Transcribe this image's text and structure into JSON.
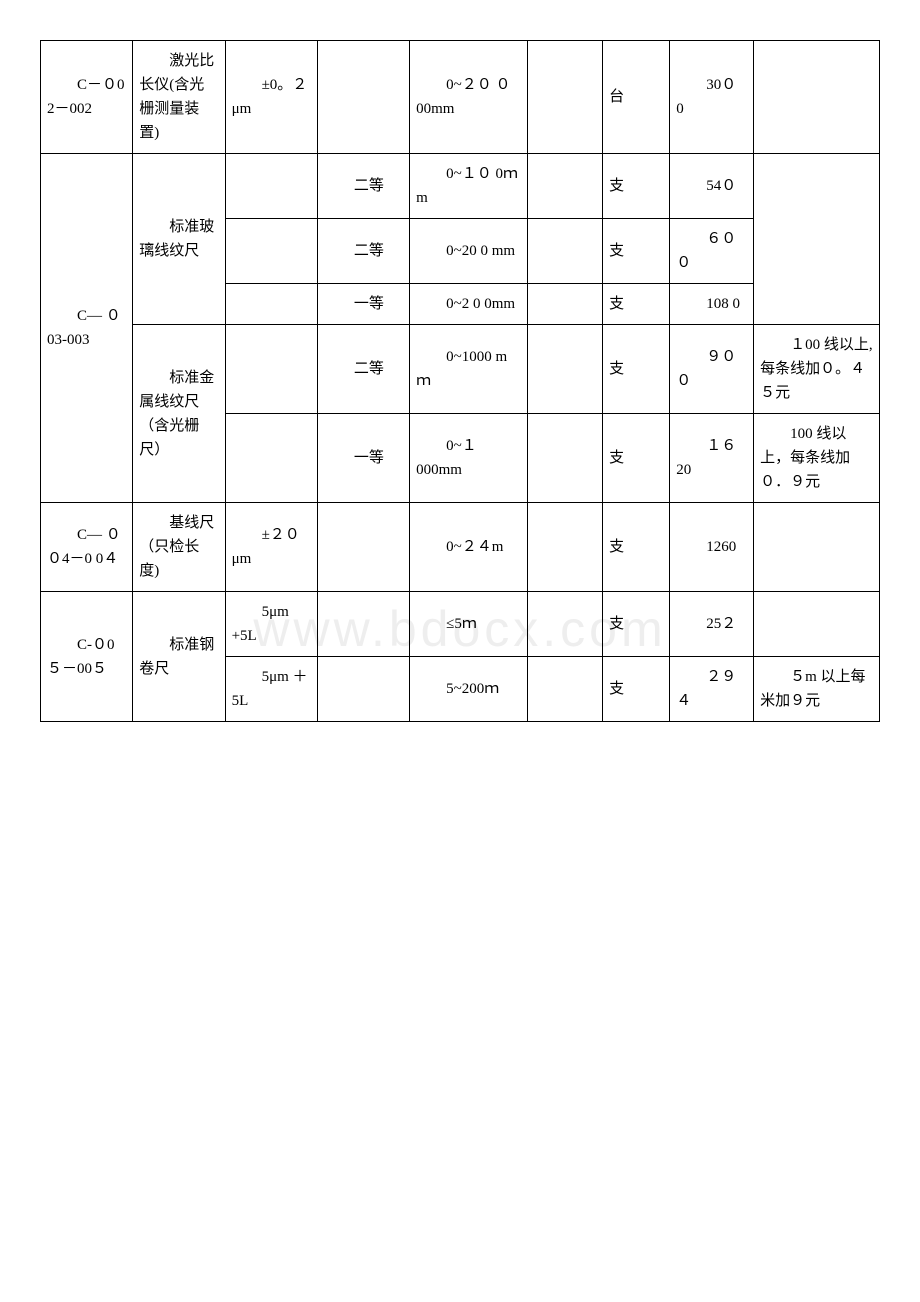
{
  "watermark": "www.bdocx.com",
  "table": {
    "columns": {
      "code_width": "11%",
      "name_width": "11%",
      "spec_width": "11%",
      "level_width": "11%",
      "range_width": "14%",
      "blank_width": "9%",
      "unit_width": "8%",
      "price_width": "10%",
      "note_width": "15%"
    },
    "rows": [
      {
        "code": "　　C－０0 2－002",
        "name": "　　激光比长仪(含光栅测量装置)",
        "spec": "　　±0。２μm",
        "level": "",
        "range": "　　0~２０ ０00mm",
        "blank": "",
        "unit": "台",
        "price": "　　30０ 0",
        "note": ""
      },
      {
        "code": "　　C— ０03-003",
        "code_rowspan": 5,
        "name": "　　标准玻璃线纹尺",
        "name_rowspan": 3,
        "spec": "",
        "level": "　　二等",
        "range": "　　0~１０ 0ｍm",
        "blank": "",
        "unit": "支",
        "price": "　　54０",
        "note": "",
        "note_rowspan": 3
      },
      {
        "spec": "",
        "level": "　　二等",
        "range": "　　0~20 0 mm",
        "blank": "",
        "unit": "支",
        "price": "　　６０ ０"
      },
      {
        "spec": "",
        "level": "　　一等",
        "range": "　　0~2 0 0mm",
        "blank": "",
        "unit": "支",
        "price": "　　108 0"
      },
      {
        "name": "　　标准金属线纹尺（含光栅尺）",
        "name_rowspan": 2,
        "spec": "",
        "level": "　　二等",
        "range": "　　0~1000 mｍ",
        "blank": "",
        "unit": "支",
        "price": "　　９０ ０",
        "note": "　　１00 线以上,每条线加０。４５元"
      },
      {
        "spec": "",
        "level": "　　一等",
        "range": "　　0~１ 000mm",
        "blank": "",
        "unit": "支",
        "price": "　　１６20",
        "note": "　　100 线以上，每条线加０．９元"
      },
      {
        "code": "　　C— ０ ０4－0 0４",
        "name": "　　基线尺（只检长度)",
        "spec": "　　±２０ μm",
        "level": "",
        "range": "　　0~２４m",
        "blank": "",
        "unit": "支",
        "price": "　　1260",
        "note": ""
      },
      {
        "code": "　　C-０0５－00５",
        "code_rowspan": 2,
        "name": "　　标准钢卷尺",
        "name_rowspan": 2,
        "spec": "　　5μm　 +5L",
        "level": "",
        "range": "　　≤5ｍ",
        "blank": "",
        "unit": "支",
        "price": "　　25２",
        "note": ""
      },
      {
        "spec": "　　5μm ＋5L",
        "level": "",
        "range": "　　5~200ｍ",
        "blank": "",
        "unit": "支",
        "price": "　　２９４",
        "note": "　　５m 以上每米加９元"
      }
    ]
  },
  "colors": {
    "text": "#000000",
    "background": "#ffffff",
    "border": "#000000",
    "watermark": "#eeeeee"
  },
  "typography": {
    "body_fontsize": 16,
    "cell_fontsize": 15,
    "watermark_fontsize": 50,
    "font_family": "SimSun"
  }
}
